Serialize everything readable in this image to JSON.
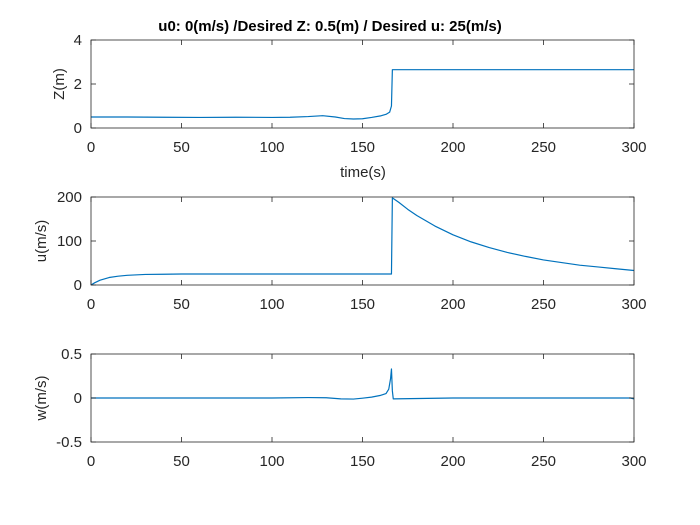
{
  "figure": {
    "colors": {
      "line": "#0072BD",
      "axis": "#262626",
      "background": "#ffffff"
    }
  },
  "chart_data": [
    {
      "type": "line",
      "title": "u0: 0(m/s) /Desired Z: 0.5(m) / Desired u: 25(m/s)",
      "xlabel": "time(s)",
      "ylabel": "Z(m)",
      "xlim": [
        0,
        300
      ],
      "ylim": [
        0,
        4
      ],
      "xticks": [
        0,
        50,
        100,
        150,
        200,
        250,
        300
      ],
      "yticks": [
        0,
        2,
        4
      ],
      "xtick_labels": [
        "0",
        "50",
        "100",
        "150",
        "200",
        "250",
        "300"
      ],
      "ytick_labels": [
        "0",
        "2",
        "4"
      ],
      "grid": false,
      "series": [
        {
          "x": [
            0,
            20,
            40,
            60,
            80,
            100,
            110,
            120,
            128,
            135,
            140,
            145,
            150,
            155,
            160,
            163,
            165,
            166,
            166.5,
            200,
            250,
            300
          ],
          "y": [
            0.5,
            0.5,
            0.49,
            0.48,
            0.49,
            0.48,
            0.49,
            0.52,
            0.56,
            0.5,
            0.43,
            0.41,
            0.42,
            0.48,
            0.55,
            0.62,
            0.72,
            1.0,
            2.65,
            2.65,
            2.65,
            2.65
          ]
        }
      ]
    },
    {
      "type": "line",
      "ylabel": "u(m/s)",
      "xlim": [
        0,
        300
      ],
      "ylim": [
        0,
        200
      ],
      "xticks": [
        0,
        50,
        100,
        150,
        200,
        250,
        300
      ],
      "yticks": [
        0,
        100,
        200
      ],
      "xtick_labels": [
        "0",
        "50",
        "100",
        "150",
        "200",
        "250",
        "300"
      ],
      "ytick_labels": [
        "0",
        "100",
        "200"
      ],
      "grid": false,
      "series": [
        {
          "x": [
            0,
            2,
            5,
            10,
            15,
            20,
            30,
            40,
            50,
            70,
            100,
            130,
            150,
            166,
            166.5,
            170,
            175,
            180,
            190,
            200,
            210,
            220,
            230,
            240,
            250,
            260,
            270,
            280,
            290,
            300
          ],
          "y": [
            0,
            5,
            11,
            17,
            20,
            22,
            24,
            24.5,
            25,
            25,
            25,
            25,
            25,
            25,
            198,
            188,
            172,
            158,
            134,
            114,
            98,
            85,
            74,
            65,
            57,
            51,
            45,
            41,
            37,
            33
          ]
        }
      ]
    },
    {
      "type": "line",
      "ylabel": "w(m/s)",
      "xlim": [
        0,
        300
      ],
      "ylim": [
        -0.5,
        0.5
      ],
      "xticks": [
        0,
        50,
        100,
        150,
        200,
        250,
        300
      ],
      "yticks": [
        -0.5,
        0,
        0.5
      ],
      "xtick_labels": [
        "0",
        "50",
        "100",
        "150",
        "200",
        "250",
        "300"
      ],
      "ytick_labels": [
        "-0.5",
        "0",
        "0.5"
      ],
      "grid": false,
      "series": [
        {
          "x": [
            0,
            50,
            80,
            100,
            120,
            130,
            138,
            145,
            150,
            155,
            160,
            163,
            164.5,
            165.5,
            166,
            166.5,
            167,
            200,
            250,
            298,
            300
          ],
          "y": [
            0,
            0,
            0,
            0,
            0.005,
            0.003,
            -0.01,
            -0.012,
            -0.002,
            0.01,
            0.03,
            0.05,
            0.1,
            0.22,
            0.33,
            0.08,
            -0.01,
            0,
            0,
            0,
            -0.01
          ]
        }
      ]
    }
  ]
}
